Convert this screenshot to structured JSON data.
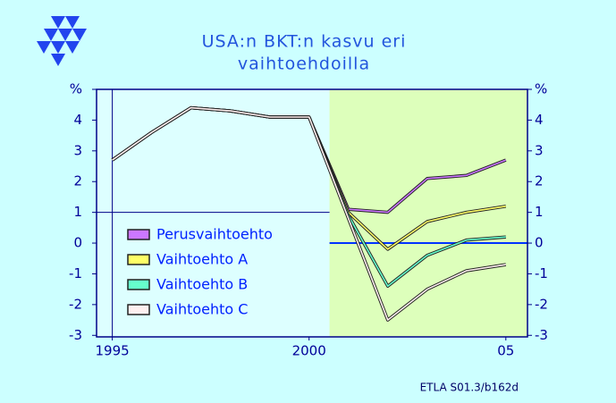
{
  "chart_data": {
    "type": "line",
    "title": [
      "USA:n BKT:n kasvu eri",
      "vaihtoehdoilla"
    ],
    "source": "ETLA S01.3/b162d",
    "x": [
      1995,
      1996,
      1997,
      1998,
      1999,
      2000,
      2001,
      2002,
      2003,
      2004,
      2005
    ],
    "series": [
      {
        "name": "Perusvaihtoehto",
        "color": "#cc77ff",
        "values": [
          2.7,
          3.6,
          4.4,
          4.3,
          4.1,
          4.1,
          1.1,
          1.0,
          2.1,
          2.2,
          2.7
        ]
      },
      {
        "name": "Vaihtoehto A",
        "color": "#ffff66",
        "values": [
          2.7,
          3.6,
          4.4,
          4.3,
          4.1,
          4.1,
          1.0,
          -0.2,
          0.7,
          1.0,
          1.2
        ]
      },
      {
        "name": "Vaihtoehto B",
        "color": "#66ffcc",
        "values": [
          2.7,
          3.6,
          4.4,
          4.3,
          4.1,
          4.1,
          0.9,
          -1.4,
          -0.4,
          0.1,
          0.2
        ]
      },
      {
        "name": "Vaihtoehto C",
        "color": "#fff0f0",
        "values": [
          2.7,
          3.6,
          4.4,
          4.3,
          4.1,
          4.1,
          0.8,
          -2.5,
          -1.5,
          -0.9,
          -0.7
        ]
      }
    ],
    "xlim": [
      1994.6,
      2005.55
    ],
    "xticks": [
      1995,
      2000,
      {
        "value": 2005,
        "label": "05"
      }
    ],
    "ylim": [
      -3.05,
      5
    ],
    "yticks": [
      {
        "value": 5,
        "label": "%"
      },
      4,
      3,
      2,
      1,
      0,
      -1,
      -2,
      -3
    ],
    "y2lim": [
      -3.05,
      5
    ],
    "y2ticks": [
      {
        "value": 5,
        "label": "%"
      },
      4,
      3,
      2,
      1,
      0,
      -1,
      -2,
      -3
    ],
    "shade_xrange": [
      2000.52,
      2005.55
    ]
  }
}
